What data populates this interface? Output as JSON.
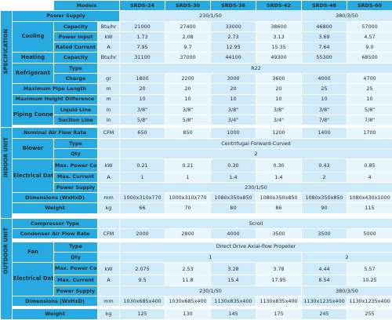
{
  "header": {
    "models_label": "Models",
    "models": [
      "SRDS-24",
      "SRDS-30",
      "SRDS-36",
      "SRDS-42",
      "SRDS-48",
      "SRDS-60"
    ]
  },
  "sections": {
    "specification": "SPECIFICATION",
    "indoor_unit": "INDOOR UNIT",
    "outdoor_unit": "OUTDOOR UNIT"
  },
  "power_supply": {
    "label": "Power Supply",
    "v1": "230/1/50",
    "v2": "380/3/50"
  },
  "cooling": {
    "label": "Cooling",
    "rows": [
      {
        "label": "Capacity",
        "unit": "Btu/hr",
        "values": [
          "21000",
          "27400",
          "33000",
          "38600",
          "46800",
          "57000"
        ]
      },
      {
        "label": "Power Input",
        "unit": "kW",
        "values": [
          "1.73",
          "2.08",
          "2.73",
          "3.13",
          "3.69",
          "4.57"
        ]
      },
      {
        "label": "Rated Current",
        "unit": "A",
        "values": [
          "7.95",
          "9.7",
          "12.95",
          "15.35",
          "7.64",
          "9.0"
        ]
      }
    ]
  },
  "heating": {
    "label": "Heating",
    "sub": "Capacity",
    "unit": "Btu/hr",
    "values": [
      "31100",
      "37000",
      "44100",
      "49300",
      "55300",
      "68500"
    ]
  },
  "refrigerant": {
    "label": "Refrigerant",
    "type_label": "Type",
    "type_value": "R22",
    "charge_label": "Charge",
    "charge_unit": "gr",
    "charge_values": [
      "1800",
      "2200",
      "3000",
      "3600",
      "4000",
      "4700"
    ]
  },
  "max_pipe_length": {
    "label": "Maximum Pipe Length",
    "unit": "m",
    "values": [
      "20",
      "20",
      "20",
      "20",
      "25",
      "25"
    ]
  },
  "max_height_diff": {
    "label": "Maximum Height Difference",
    "unit": "m",
    "values": [
      "10",
      "10",
      "10",
      "10",
      "10",
      "10"
    ]
  },
  "piping": {
    "label": "Piping Connections",
    "liquid_label": "Liquid Line",
    "liquid_unit": "in",
    "liquid_values": [
      "3/8\"",
      "3/8\"",
      "3/8\"",
      "3/8\"",
      "3/8\"",
      "5/8\""
    ],
    "suction_label": "Suction Line",
    "suction_unit": "in",
    "suction_values": [
      "5/8\"",
      "5/8\"",
      "3/4\"",
      "3/4\"",
      "7/8\"",
      "7/8\""
    ]
  },
  "indoor": {
    "airflow": {
      "label": "Nominal Air Flow Rate",
      "unit": "CFM",
      "values": [
        "650",
        "850",
        "1000",
        "1200",
        "1400",
        "1700"
      ]
    },
    "blower": {
      "label": "Blower",
      "type_label": "Type",
      "type_value": "Centrifugal Forward-Curved",
      "qty_label": "Qty",
      "qty_value": "2"
    },
    "electrical": {
      "label": "Electrical Data",
      "power_label": "Max. Power Consumption",
      "power_unit": "kW",
      "power_values": [
        "0.21",
        "0.21",
        "0.30",
        "0.30",
        "0.43",
        "0.85"
      ],
      "current_label": "Max. Current",
      "current_unit": "A",
      "current_values": [
        "1",
        "1",
        "1.4",
        "1.4",
        "2",
        "4"
      ],
      "supply_label": "Power Supply",
      "supply_value": "230/1/50"
    },
    "dimensions": {
      "label": "Dimensions (WxHxD)",
      "unit": "mm",
      "values": [
        "1000x310x770",
        "1000x310x770",
        "1080x350x850",
        "1080x350x850",
        "1080x350x850",
        "1080x430x1000"
      ]
    },
    "weight": {
      "label": "Weight",
      "unit": "kg",
      "values": [
        "66",
        "70",
        "80",
        "86",
        "90",
        "115"
      ]
    }
  },
  "outdoor": {
    "compressor": {
      "label": "Compressor Type",
      "value": "Scroll"
    },
    "condenser": {
      "label": "Condenser Air Flow Rate",
      "unit": "CFM",
      "values": [
        "2000",
        "2800",
        "4000",
        "3500",
        "3500",
        "5000"
      ]
    },
    "fan": {
      "label": "Fan",
      "type_label": "Type",
      "type_value": "Direct Drive Axial-flow Propeller",
      "qty_label": "Qty",
      "qty_v1": "1",
      "qty_v2": "2"
    },
    "electrical": {
      "label": "Electrical Data",
      "power_label": "Max. Power Consumption",
      "power_unit": "kW",
      "power_values": [
        "2.075",
        "2.53",
        "3.28",
        "3.78",
        "4.44",
        "5.57"
      ],
      "current_label": "Max. Current",
      "current_unit": "A",
      "current_values": [
        "9.5",
        "11.8",
        "15.4",
        "17.95",
        "8.54",
        "10.25"
      ],
      "supply_label": "Power Supply",
      "supply_v1": "230/1/50",
      "supply_v2": "380/3/50"
    },
    "dimensions": {
      "label": "Dimensions (WxHxD)",
      "unit": "mm",
      "values": [
        "1030x685x400",
        "1030x685x400",
        "1130x835x400",
        "1130x835x400",
        "1130x1235x400",
        "1130x1235x400"
      ]
    },
    "weight": {
      "label": "Weight",
      "unit": "kg",
      "values": [
        "125",
        "130",
        "145",
        "175",
        "245",
        "255"
      ]
    }
  }
}
